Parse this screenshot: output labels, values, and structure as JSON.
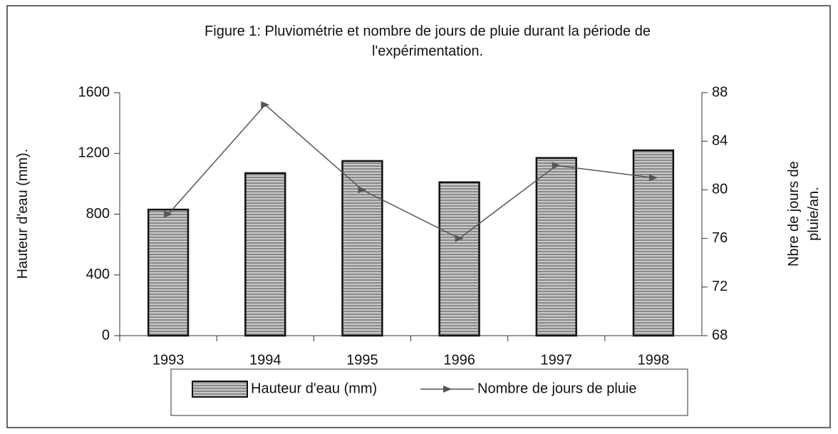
{
  "chart_data": {
    "type": "bar_line",
    "title": "Figure 1: Pluviométrie et nombre de jours de pluie durant la période de l'expérimentation.",
    "ylabel": "Hauteur d'eau (mm).",
    "y2label": "Nbre de jours de pluie/an.",
    "categories": [
      "1993",
      "1994",
      "1995",
      "1996",
      "1997",
      "1998"
    ],
    "series": [
      {
        "name": "Hauteur d'eau (mm)",
        "type": "bar",
        "color": "#9a9a9a",
        "values": [
          830,
          1070,
          1150,
          1010,
          1170,
          1220
        ]
      },
      {
        "name": "Nombre de jours de pluie",
        "type": "line",
        "axis": "y2",
        "color": "#555555",
        "values": [
          78,
          87,
          80,
          76,
          82,
          81
        ]
      }
    ],
    "ylim": [
      0,
      1600
    ],
    "yticks": [
      0,
      400,
      800,
      1200,
      1600
    ],
    "y2lim": [
      68,
      88
    ],
    "y2ticks": [
      68,
      72,
      76,
      80,
      84,
      88
    ],
    "grid": false,
    "legend": "bottom"
  }
}
